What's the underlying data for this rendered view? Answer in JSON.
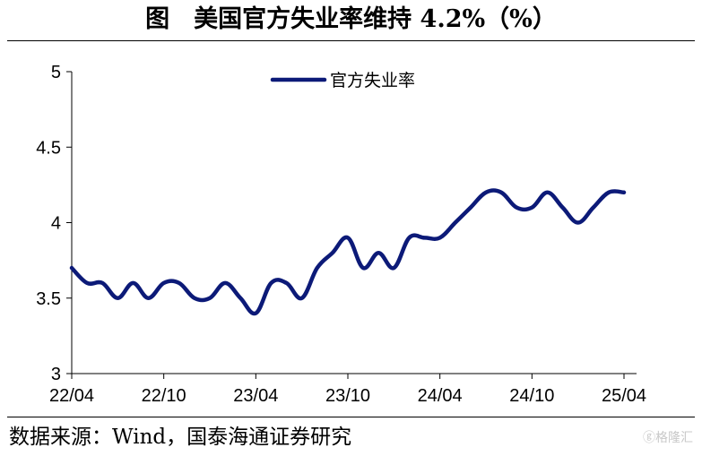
{
  "header": {
    "title": "图　美国官方失业率维持 4.2%（%）"
  },
  "footer": {
    "source": "数据来源：Wind，国泰海通证券研究",
    "watermark": "ⓖ格隆汇"
  },
  "chart_data": {
    "type": "line",
    "title": "图　美国官方失业率维持 4.2%（%）",
    "xlabel": "",
    "ylabel": "",
    "ylim": [
      3,
      5
    ],
    "yticks": [
      "3",
      "3.5",
      "4",
      "4.5",
      "5"
    ],
    "xtick_labels": [
      "22/04",
      "22/10",
      "23/04",
      "23/10",
      "24/04",
      "24/10",
      "25/04"
    ],
    "legend_position": "top-center",
    "grid": false,
    "series": [
      {
        "name": "官方失业率",
        "color": "#0c1a78",
        "x": [
          "22/04",
          "22/05",
          "22/06",
          "22/07",
          "22/08",
          "22/09",
          "22/10",
          "22/11",
          "22/12",
          "23/01",
          "23/02",
          "23/03",
          "23/04",
          "23/05",
          "23/06",
          "23/07",
          "23/08",
          "23/09",
          "23/10",
          "23/11",
          "23/12",
          "24/01",
          "24/02",
          "24/03",
          "24/04",
          "24/05",
          "24/06",
          "24/07",
          "24/08",
          "24/09",
          "24/10",
          "24/11",
          "24/12",
          "25/01",
          "25/02",
          "25/03",
          "25/04"
        ],
        "values": [
          3.7,
          3.6,
          3.6,
          3.5,
          3.6,
          3.5,
          3.6,
          3.6,
          3.5,
          3.5,
          3.6,
          3.5,
          3.4,
          3.6,
          3.6,
          3.5,
          3.7,
          3.8,
          3.9,
          3.7,
          3.8,
          3.7,
          3.9,
          3.9,
          3.9,
          4.0,
          4.1,
          4.2,
          4.2,
          4.1,
          4.1,
          4.2,
          4.1,
          4.0,
          4.1,
          4.2,
          4.2
        ]
      }
    ]
  }
}
